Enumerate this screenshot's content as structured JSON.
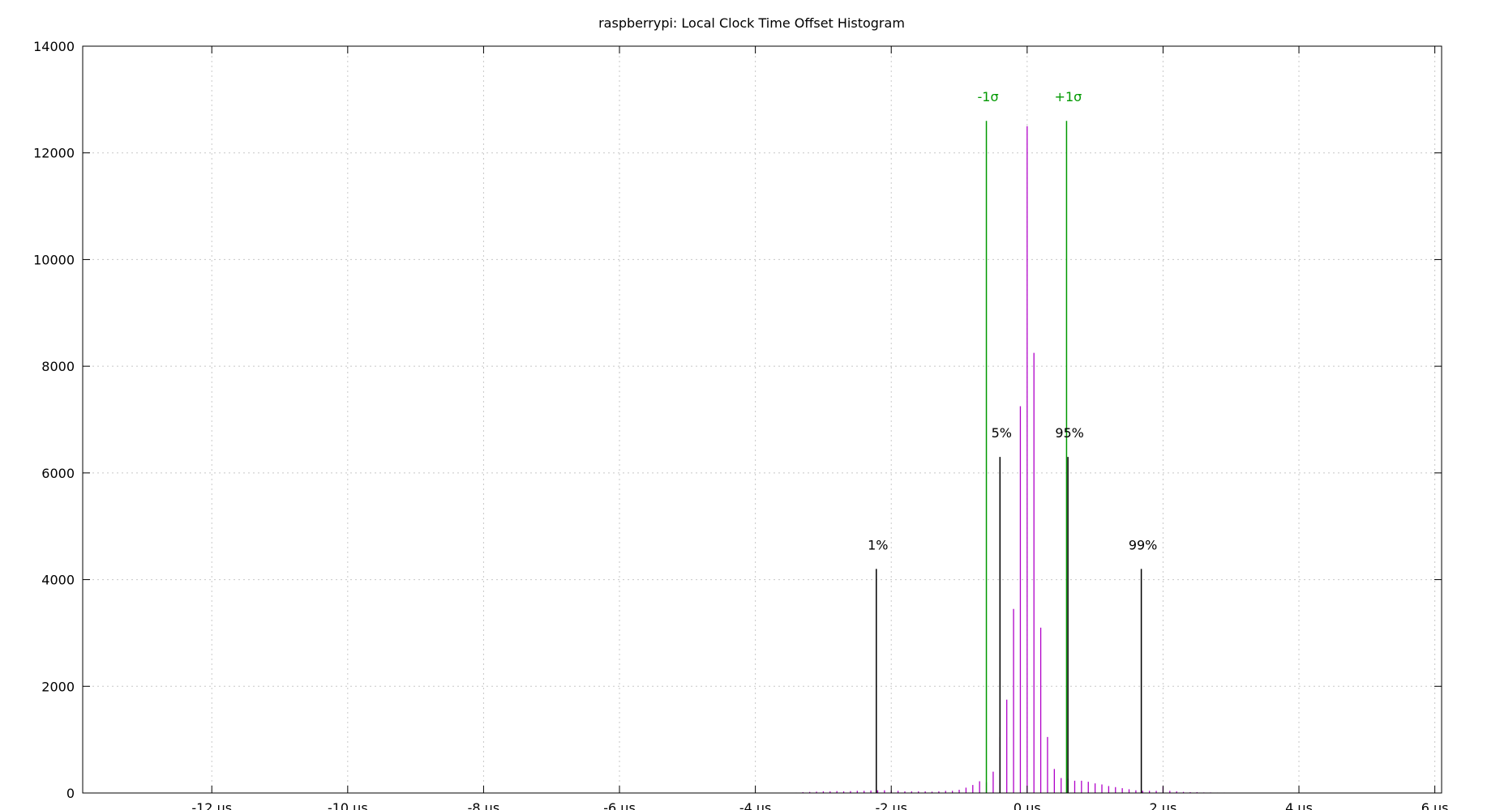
{
  "chart_data": {
    "type": "bar",
    "title": "raspberrypi: Local Clock Time Offset Histogram",
    "xlabel": "",
    "ylabel": "",
    "x_unit": "µs",
    "xlim": [
      -13.9,
      6.1
    ],
    "ylim": [
      0,
      14000
    ],
    "grid": true,
    "x_ticks": [
      {
        "value": -12,
        "label": "-12 µs"
      },
      {
        "value": -10,
        "label": "-10 µs"
      },
      {
        "value": -8,
        "label": "-8 µs"
      },
      {
        "value": -6,
        "label": "-6 µs"
      },
      {
        "value": -4,
        "label": "-4 µs"
      },
      {
        "value": -2,
        "label": "-2 µs"
      },
      {
        "value": 0,
        "label": "0 µs"
      },
      {
        "value": 2,
        "label": "2 µs"
      },
      {
        "value": 4,
        "label": "4 µs"
      },
      {
        "value": 6,
        "label": "6 µs"
      }
    ],
    "y_ticks": [
      {
        "value": 0,
        "label": "0"
      },
      {
        "value": 2000,
        "label": "2000"
      },
      {
        "value": 4000,
        "label": "4000"
      },
      {
        "value": 6000,
        "label": "6000"
      },
      {
        "value": 8000,
        "label": "8000"
      },
      {
        "value": 10000,
        "label": "10000"
      },
      {
        "value": 12000,
        "label": "12000"
      },
      {
        "value": 14000,
        "label": "14000"
      }
    ],
    "series": [
      {
        "color": "#b000c8",
        "x": [
          -3.6,
          -3.4,
          -3.3,
          -3.2,
          -3.1,
          -3.0,
          -2.9,
          -2.8,
          -2.7,
          -2.6,
          -2.5,
          -2.4,
          -2.3,
          -2.2,
          -2.1,
          -2.0,
          -1.9,
          -1.8,
          -1.7,
          -1.6,
          -1.5,
          -1.4,
          -1.3,
          -1.2,
          -1.1,
          -1.0,
          -0.9,
          -0.8,
          -0.7,
          -0.6,
          -0.5,
          -0.4,
          -0.3,
          -0.2,
          -0.1,
          0.0,
          0.1,
          0.2,
          0.3,
          0.4,
          0.5,
          0.6,
          0.7,
          0.8,
          0.9,
          1.0,
          1.1,
          1.2,
          1.3,
          1.4,
          1.5,
          1.6,
          1.7,
          1.8,
          1.9,
          2.0,
          2.1,
          2.2,
          2.3,
          2.4,
          2.5,
          2.6,
          2.7,
          2.8,
          2.9,
          3.0,
          3.2,
          3.4,
          3.6
        ],
        "values": [
          5,
          8,
          15,
          20,
          25,
          30,
          30,
          35,
          30,
          35,
          40,
          40,
          45,
          50,
          50,
          40,
          40,
          30,
          30,
          30,
          30,
          25,
          30,
          40,
          40,
          60,
          100,
          150,
          220,
          200,
          400,
          1050,
          1750,
          3450,
          7250,
          12500,
          8250,
          3100,
          1050,
          450,
          280,
          270,
          230,
          230,
          210,
          180,
          160,
          130,
          110,
          90,
          70,
          50,
          40,
          40,
          40,
          120,
          40,
          30,
          20,
          15,
          15,
          10,
          10,
          8,
          8,
          5,
          5,
          3,
          3
        ]
      }
    ],
    "annotations": [
      {
        "label": "-1σ",
        "x": -0.6,
        "y": 12600,
        "color": "#009900"
      },
      {
        "label": "+1σ",
        "x": 0.58,
        "y": 12600,
        "color": "#009900"
      },
      {
        "label": "1%",
        "x": -2.22,
        "y": 4200,
        "color": "#000000"
      },
      {
        "label": "5%",
        "x": -0.4,
        "y": 6300,
        "color": "#000000"
      },
      {
        "label": "95%",
        "x": 0.6,
        "y": 6300,
        "color": "#000000"
      },
      {
        "label": "99%",
        "x": 1.68,
        "y": 4200,
        "color": "#000000"
      }
    ]
  }
}
